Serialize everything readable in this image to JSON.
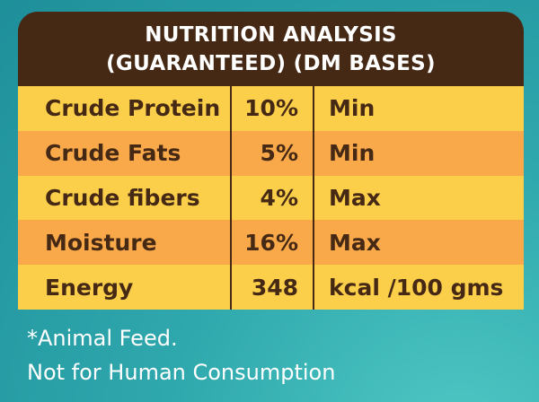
{
  "header": {
    "title_line1": "NUTRITION ANALYSIS",
    "title_line2": "(GUARANTEED) (DM BASES)"
  },
  "rows": [
    {
      "name": "Crude Protein",
      "value": "10%",
      "unit": "Min"
    },
    {
      "name": "Crude Fats",
      "value": "5%",
      "unit": "Min"
    },
    {
      "name": "Crude fibers",
      "value": "4%",
      "unit": "Max"
    },
    {
      "name": "Moisture",
      "value": "16%",
      "unit": "Max"
    },
    {
      "name": "Energy",
      "value": "348",
      "unit": "kcal /100 gms"
    }
  ],
  "footnote": {
    "line1": "*Animal Feed.",
    "line2": "Not for Human Consumption"
  }
}
